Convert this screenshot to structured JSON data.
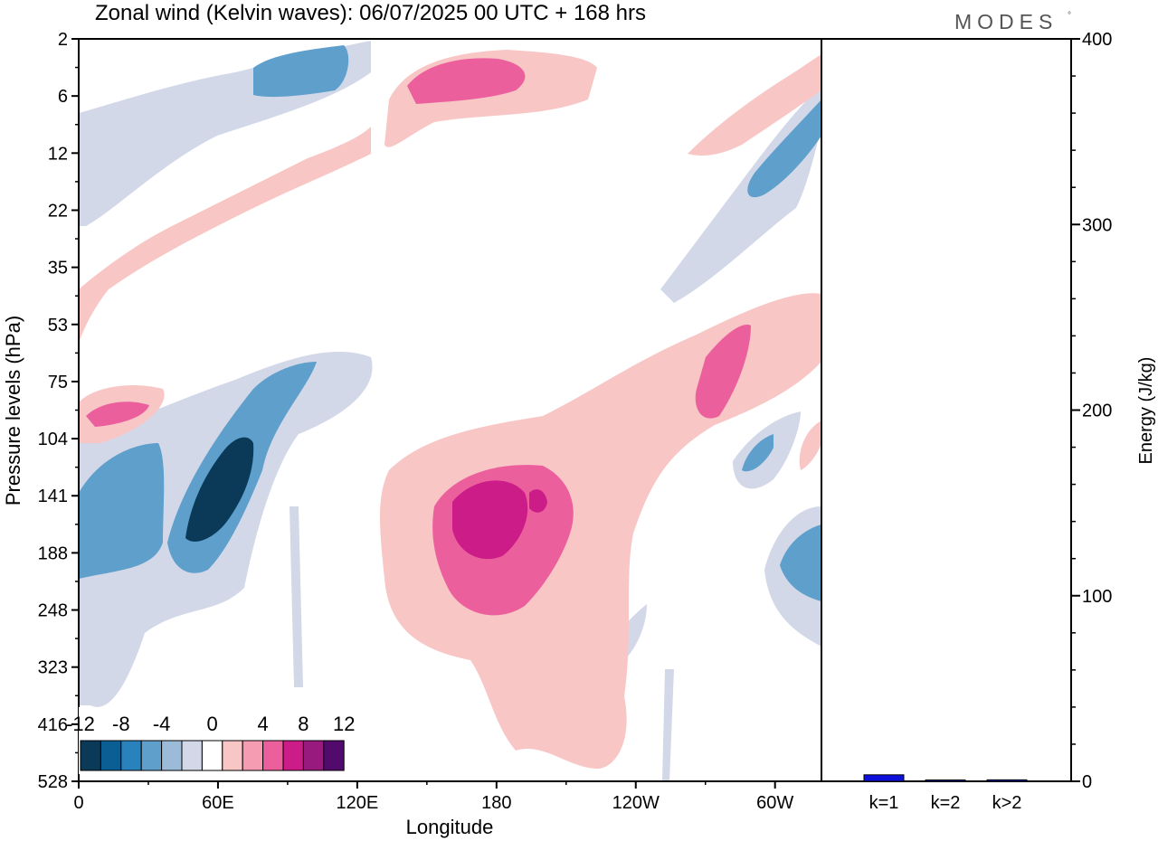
{
  "title": "Zonal wind (Kelvin waves):  06/07/2025  00 UTC  + 168 hrs",
  "brand": "MODES",
  "brand_mark": "°",
  "chart_data": [
    {
      "type": "heatmap",
      "xlabel": "Longitude",
      "ylabel": "Pressure levels (hPa)",
      "x_ticks": [
        "0",
        "60E",
        "120E",
        "180",
        "120W",
        "60W"
      ],
      "x_tick_longitudes": [
        0,
        60,
        120,
        180,
        240,
        300
      ],
      "xlim": [
        0,
        320
      ],
      "y_ticks": [
        "2",
        "6",
        "12",
        "22",
        "35",
        "53",
        "75",
        "104",
        "141",
        "188",
        "248",
        "323",
        "416",
        "528"
      ],
      "y_axis": "pressure levels, top to bottom",
      "colorbar": {
        "labels": [
          "-12",
          "-8",
          "-4",
          "0",
          "4",
          "8",
          "12"
        ],
        "levels": [
          -14,
          -12,
          -10,
          -8,
          -6,
          -4,
          -2,
          2,
          4,
          6,
          8,
          10,
          12,
          14
        ],
        "colors": [
          "#0a3a58",
          "#0b5e94",
          "#2a82bd",
          "#5e9fcb",
          "#9bbbd9",
          "#d3d8e8",
          "#ffffff",
          "#f9c6c6",
          "#f69cb2",
          "#ec5f9d",
          "#cb1c88",
          "#981a7e",
          "#520a6d"
        ]
      },
      "colors": {
        "strong_negative": "#0a3a58",
        "negative": "#5e9fcb",
        "weak_negative": "#d3d8e8",
        "weak_positive": "#f9c6c6",
        "positive": "#ec5f9d",
        "strong_positive": "#cb1c88"
      },
      "features": [
        {
          "sign": "negative",
          "min": -14,
          "lon": [
            45,
            90
          ],
          "level": [
            104,
            188
          ]
        },
        {
          "sign": "negative",
          "min": -10,
          "lon": [
            0,
            35
          ],
          "level": [
            141,
            188
          ]
        },
        {
          "sign": "negative",
          "min": -8,
          "lon": [
            75,
            125
          ],
          "level": [
            2,
            6
          ]
        },
        {
          "sign": "negative",
          "min": -8,
          "lon": [
            300,
            320
          ],
          "level": [
            6,
            22
          ]
        },
        {
          "sign": "negative",
          "min": -8,
          "lon": [
            290,
            320
          ],
          "level": [
            141,
            248
          ]
        },
        {
          "sign": "negative",
          "min": -4,
          "lon": [
            285,
            320
          ],
          "level": [
            12,
            53
          ]
        },
        {
          "sign": "positive",
          "max": 10,
          "lon": [
            165,
            215
          ],
          "level": [
            104,
            248
          ]
        },
        {
          "sign": "positive",
          "max": 8,
          "lon": [
            140,
            310
          ],
          "level": [
            53,
            416
          ]
        },
        {
          "sign": "positive",
          "max": 6,
          "lon": [
            140,
            230
          ],
          "level": [
            2,
            12
          ]
        },
        {
          "sign": "positive",
          "max": 6,
          "lon": [
            0,
            15
          ],
          "level": [
            75,
            104
          ]
        },
        {
          "sign": "positive",
          "max": 2,
          "lon": [
            0,
            60
          ],
          "level": [
            12,
            53
          ]
        },
        {
          "sign": "negative",
          "min": -2,
          "lon": [
            0,
            135
          ],
          "level": [
            188,
            416
          ]
        }
      ]
    },
    {
      "type": "bar",
      "ylabel": "Energy (J/kg)",
      "categories": [
        "k=1",
        "k=2",
        "k>2"
      ],
      "values": [
        3.5,
        0.3,
        0.8
      ],
      "ylim": [
        0,
        400
      ],
      "y_ticks": [
        "0",
        "100",
        "200",
        "300",
        "400"
      ],
      "bar_color": "#1010dd"
    }
  ]
}
